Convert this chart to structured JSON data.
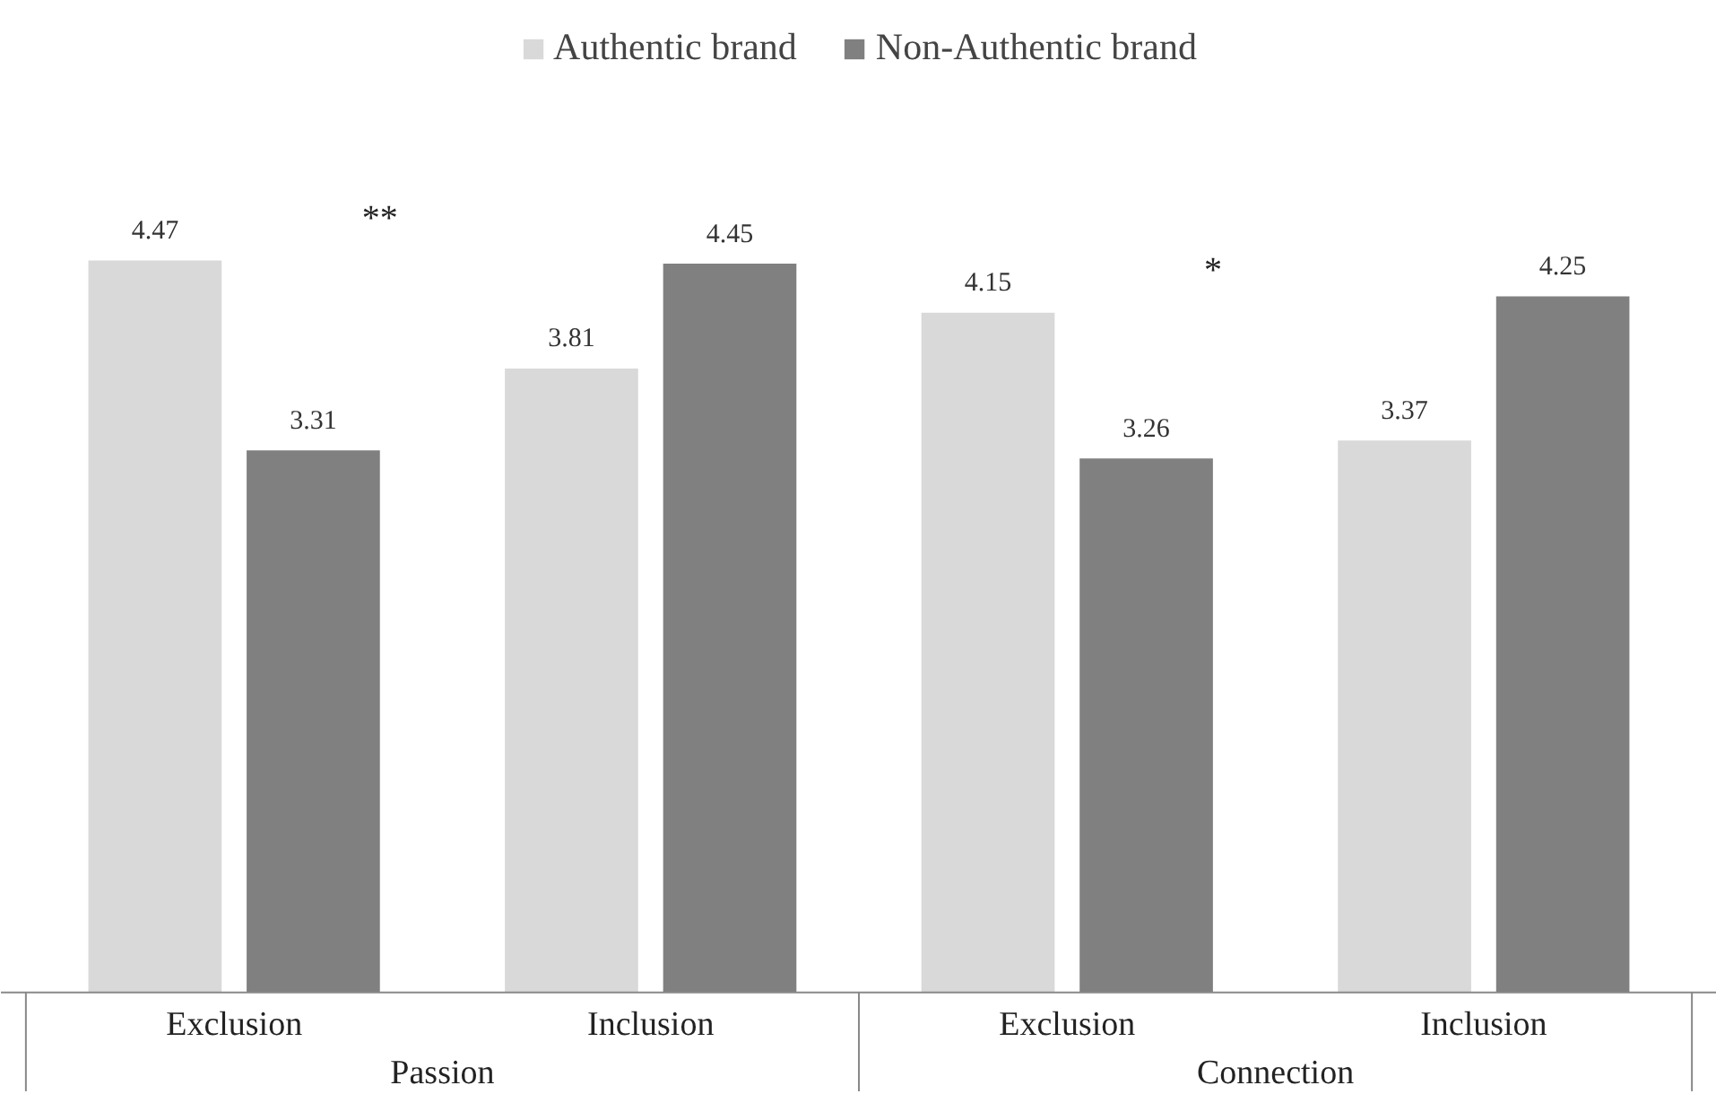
{
  "chart_data": {
    "type": "bar",
    "categories": [
      "Exclusion",
      "Inclusion",
      "Exclusion",
      "Inclusion"
    ],
    "series": [
      {
        "name": "Authentic brand",
        "color": "#d9d9d9",
        "values": [
          4.47,
          3.81,
          4.15,
          3.37
        ]
      },
      {
        "name": "Non-Authentic brand",
        "color": "#808080",
        "values": [
          3.31,
          4.45,
          3.26,
          4.25
        ]
      }
    ],
    "data_labels": true,
    "legend": "top",
    "grid": false,
    "annotations": [
      "Passion",
      "Connection",
      "**",
      "*"
    ]
  }
}
